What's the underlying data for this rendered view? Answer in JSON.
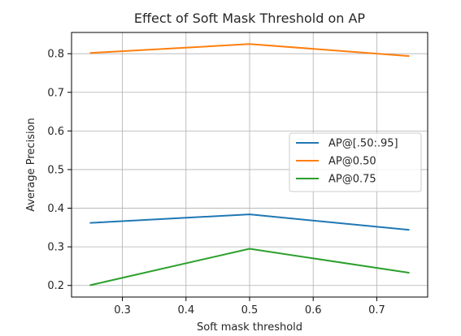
{
  "chart_data": {
    "type": "line",
    "title": "Effect of Soft Mask Threshold on AP",
    "xlabel": "Soft mask threshold",
    "ylabel": "Average Precision",
    "x": [
      0.25,
      0.5,
      0.75
    ],
    "xlim": [
      0.22,
      0.78
    ],
    "ylim": [
      0.17,
      0.855
    ],
    "xticks": [
      0.3,
      0.4,
      0.5,
      0.6,
      0.7
    ],
    "xtick_labels": [
      "0.3",
      "0.4",
      "0.5",
      "0.6",
      "0.7"
    ],
    "yticks": [
      0.2,
      0.3,
      0.4,
      0.5,
      0.6,
      0.7,
      0.8
    ],
    "ytick_labels": [
      "0.2",
      "0.3",
      "0.4",
      "0.5",
      "0.6",
      "0.7",
      "0.8"
    ],
    "grid": true,
    "legend_position": "center-right",
    "series": [
      {
        "name": "AP@[.50:.95]",
        "color": "#1f77b4",
        "values": [
          0.362,
          0.384,
          0.344
        ]
      },
      {
        "name": "AP@0.50",
        "color": "#ff7f0e",
        "values": [
          0.802,
          0.825,
          0.794
        ]
      },
      {
        "name": "AP@0.75",
        "color": "#2ca02c",
        "values": [
          0.201,
          0.295,
          0.233
        ]
      }
    ]
  }
}
